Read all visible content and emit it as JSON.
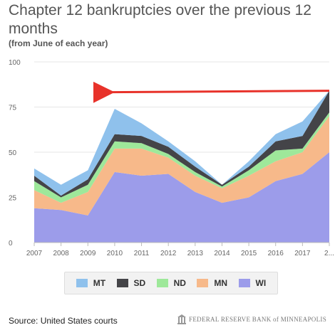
{
  "header": {
    "title": "Chapter 12 bankruptcies over the previous 12 months",
    "subtitle": "(from June of each year)"
  },
  "footer": {
    "source": "Source: United States courts",
    "logo_text": "FEDERAL RESERVE BANK of MINNEAPOLIS"
  },
  "colors": {
    "WI": "#9c9cea",
    "MN": "#f7b98a",
    "ND": "#9ee89a",
    "SD": "#444448",
    "MT": "#8fc1ec",
    "arrow": "#e8322a",
    "grid": "#e6e6e6",
    "axis_text": "#666666"
  },
  "chart_data": {
    "type": "area",
    "stacked": true,
    "categories": [
      "2007",
      "2008",
      "2009",
      "2010",
      "2011",
      "2012",
      "2013",
      "2014",
      "2015",
      "2016",
      "2017",
      "2..."
    ],
    "ylim": [
      0,
      100
    ],
    "yticks": [
      "0",
      "25",
      "50",
      "75",
      "100"
    ],
    "grid": true,
    "legend_position": "bottom",
    "series": [
      {
        "name": "WI",
        "values": [
          19,
          18,
          15,
          39,
          37,
          38,
          28,
          22,
          25,
          34,
          38,
          50
        ]
      },
      {
        "name": "MN",
        "values": [
          10,
          4,
          13,
          13,
          15,
          9,
          9,
          8,
          12,
          11,
          12,
          20
        ]
      },
      {
        "name": "ND",
        "values": [
          5,
          3,
          4,
          4,
          3,
          2,
          2,
          1,
          3,
          6,
          2,
          2
        ]
      },
      {
        "name": "SD",
        "values": [
          3,
          1,
          3,
          4,
          4,
          4,
          3,
          1,
          2,
          5,
          7,
          12
        ]
      },
      {
        "name": "MT",
        "values": [
          4,
          6,
          5,
          14,
          7,
          3,
          3,
          0,
          3,
          4,
          8,
          0
        ]
      }
    ],
    "legend_order": [
      "MT",
      "SD",
      "ND",
      "MN",
      "WI"
    ],
    "annotation": "red arrow pointing left from the latest value (84) back toward the 2010 level"
  }
}
